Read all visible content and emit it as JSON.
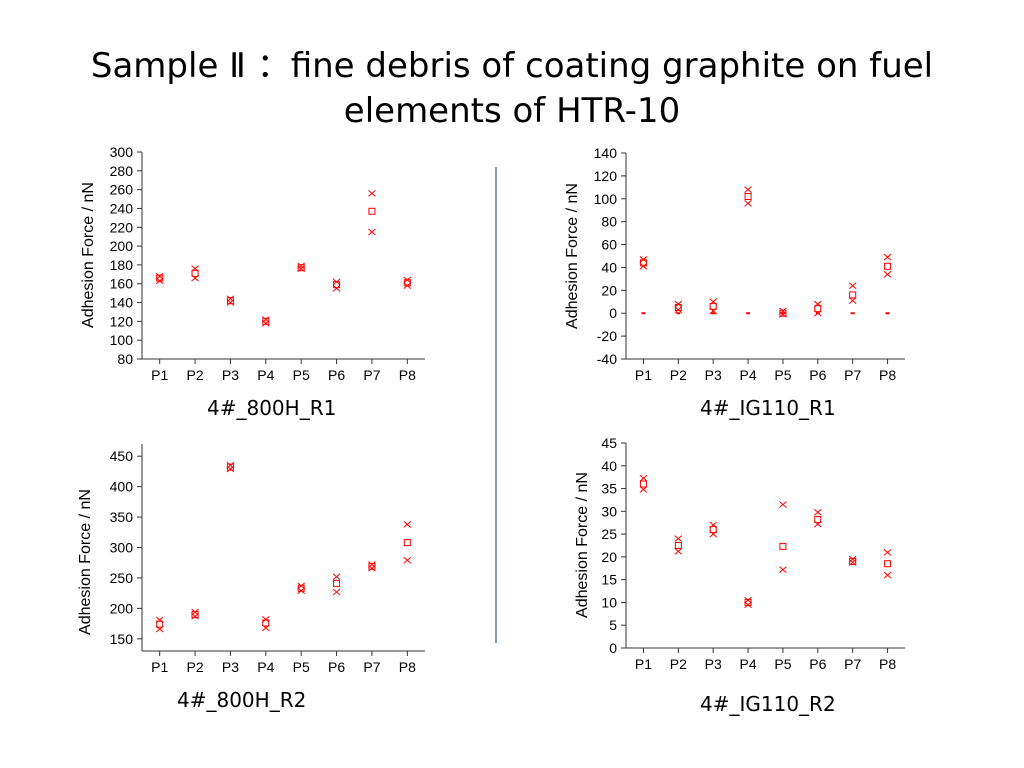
{
  "slide": {
    "title_line1": "Sample Ⅱ ：fine debris of coating graphite on fuel",
    "title_line2": "elements of HTR-10"
  },
  "colors": {
    "marker": "#ff0000",
    "axis": "#333333",
    "divider": "#7f9fc0"
  },
  "chart_data": [
    {
      "type": "scatter",
      "caption": "4#_800H_R1",
      "ylabel": "Adhesion Force / nN",
      "categories": [
        "P1",
        "P2",
        "P3",
        "P4",
        "P5",
        "P6",
        "P7",
        "P8"
      ],
      "ylim": [
        80,
        300
      ],
      "yticks": [
        80,
        100,
        120,
        140,
        160,
        180,
        200,
        220,
        240,
        260,
        280,
        300
      ],
      "series": [
        {
          "marker": "x",
          "values": [
            163,
            176,
            140,
            118,
            179,
            162,
            256,
            164
          ]
        },
        {
          "marker": "x",
          "values": [
            168,
            166,
            144,
            122,
            176,
            155,
            215,
            158
          ]
        },
        {
          "marker": "square",
          "values": [
            166,
            171,
            142,
            120,
            177,
            159,
            237,
            161
          ]
        }
      ]
    },
    {
      "type": "scatter",
      "caption": "4#_IG110_R1",
      "ylabel": "Adhesion Force / nN",
      "categories": [
        "P1",
        "P2",
        "P3",
        "P4",
        "P5",
        "P6",
        "P7",
        "P8"
      ],
      "ylim": [
        -40,
        140
      ],
      "yticks": [
        -40,
        -20,
        0,
        20,
        40,
        60,
        80,
        100,
        120,
        140
      ],
      "series": [
        {
          "marker": "x",
          "values": [
            47,
            8,
            10,
            108,
            2,
            8,
            24,
            49
          ]
        },
        {
          "marker": "x",
          "values": [
            41,
            3,
            2,
            96,
            -1,
            0,
            11,
            34
          ]
        },
        {
          "marker": "square",
          "values": [
            44,
            5,
            6,
            102,
            0,
            4,
            16,
            41
          ]
        },
        {
          "marker": "dash",
          "values": [
            0,
            0,
            0,
            0,
            0,
            0,
            0,
            0
          ]
        }
      ]
    },
    {
      "type": "scatter",
      "caption": "4#_800H_R2",
      "ylabel": "Adhesion Force / nN",
      "categories": [
        "P1",
        "P2",
        "P3",
        "P4",
        "P5",
        "P6",
        "P7",
        "P8"
      ],
      "ylim": [
        130,
        470
      ],
      "yticks": [
        150,
        200,
        250,
        300,
        350,
        400,
        450
      ],
      "series": [
        {
          "marker": "x",
          "values": [
            181,
            194,
            435,
            182,
            237,
            252,
            272,
            338
          ]
        },
        {
          "marker": "x",
          "values": [
            166,
            187,
            429,
            168,
            229,
            227,
            266,
            279
          ]
        },
        {
          "marker": "square",
          "values": [
            174,
            190,
            432,
            176,
            233,
            241,
            269,
            308
          ]
        }
      ]
    },
    {
      "type": "scatter",
      "caption": "4#_IG110_R2",
      "ylabel": "Adhesion Force / nN",
      "categories": [
        "P1",
        "P2",
        "P3",
        "P4",
        "P5",
        "P6",
        "P7",
        "P8"
      ],
      "ylim": [
        0,
        45
      ],
      "yticks": [
        0,
        5,
        10,
        15,
        20,
        25,
        30,
        35,
        40,
        45
      ],
      "series": [
        {
          "marker": "x",
          "values": [
            37.3,
            24.0,
            27.0,
            10.5,
            31.5,
            29.8,
            19.5,
            21.0
          ]
        },
        {
          "marker": "x",
          "values": [
            34.8,
            21.2,
            25.0,
            9.5,
            17.2,
            27.2,
            18.8,
            16.0
          ]
        },
        {
          "marker": "square",
          "values": [
            36.0,
            22.5,
            26.0,
            10.0,
            22.3,
            28.2,
            19.0,
            18.5
          ]
        }
      ]
    }
  ]
}
